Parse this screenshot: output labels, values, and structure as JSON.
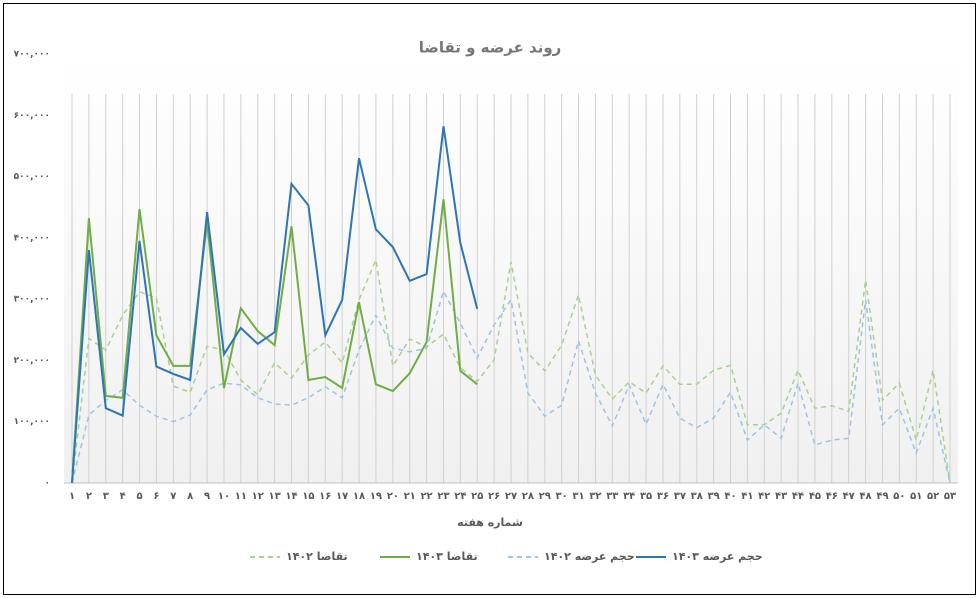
{
  "chart_data": {
    "type": "line",
    "title": "روند عرضه و تقاضا",
    "x_label": "شماره هفته",
    "categories": [
      "۱",
      "۲",
      "۳",
      "۴",
      "۵",
      "۶",
      "۷",
      "۸",
      "۹",
      "۱۰",
      "۱۱",
      "۱۲",
      "۱۳",
      "۱۴",
      "۱۵",
      "۱۶",
      "۱۷",
      "۱۸",
      "۱۹",
      "۲۰",
      "۲۱",
      "۲۲",
      "۲۳",
      "۲۴",
      "۲۵",
      "۲۶",
      "۲۷",
      "۲۸",
      "۲۹",
      "۳۰",
      "۳۱",
      "۳۲",
      "۳۳",
      "۳۴",
      "۳۵",
      "۳۶",
      "۳۷",
      "۳۸",
      "۳۹",
      "۴۰",
      "۴۱",
      "۴۲",
      "۴۳",
      "۴۴",
      "۴۵",
      "۴۶",
      "۴۷",
      "۴۸",
      "۴۹",
      "۵۰",
      "۵۱",
      "۵۲",
      "۵۳"
    ],
    "ylim": [
      0,
      700000
    ],
    "yticks": [
      {
        "value": 0,
        "label": "۰"
      },
      {
        "value": 100000,
        "label": "۱۰۰,۰۰۰"
      },
      {
        "value": 200000,
        "label": "۲۰۰,۰۰۰"
      },
      {
        "value": 300000,
        "label": "۳۰۰,۰۰۰"
      },
      {
        "value": 400000,
        "label": "۴۰۰,۰۰۰"
      },
      {
        "value": 500000,
        "label": "۵۰۰,۰۰۰"
      },
      {
        "value": 600000,
        "label": "۶۰۰,۰۰۰"
      },
      {
        "value": 700000,
        "label": "۷۰۰,۰۰۰"
      }
    ],
    "grid": "vertical",
    "legend": "bottom",
    "series": [
      {
        "name": "تقاضا ۱۴۰۲",
        "color": "#a9d18e",
        "style": "dashed",
        "values": [
          0,
          236000,
          217000,
          274000,
          312000,
          302000,
          158000,
          148000,
          223000,
          217000,
          168000,
          144000,
          196000,
          171000,
          209000,
          230000,
          196000,
          299000,
          364000,
          191000,
          235000,
          222000,
          243000,
          188000,
          166000,
          201000,
          361000,
          212000,
          183000,
          225000,
          307000,
          176000,
          137000,
          165000,
          147000,
          191000,
          161000,
          161000,
          184000,
          192000,
          95000,
          95000,
          114000,
          184000,
          122000,
          126000,
          117000,
          331000,
          135000,
          163000,
          70000,
          184000,
          0
        ]
      },
      {
        "name": "تقاضا ۱۴۰۳",
        "color": "#70ad47",
        "style": "solid",
        "values": [
          0,
          432000,
          142000,
          139000,
          447000,
          241000,
          191000,
          191000,
          426000,
          155000,
          285000,
          248000,
          225000,
          419000,
          168000,
          173000,
          155000,
          295000,
          161000,
          150000,
          179000,
          230000,
          463000,
          183000,
          161000,
          null,
          null,
          null,
          null,
          null,
          null,
          null,
          null,
          null,
          null,
          null,
          null,
          null,
          null,
          null,
          null,
          null,
          null,
          null,
          null,
          null,
          null,
          null,
          null,
          null,
          null,
          null,
          null
        ]
      },
      {
        "name": "حجم عرضه ۱۴۰۲",
        "color": "#9dc3e6",
        "style": "dashed",
        "values": [
          0,
          111000,
          135000,
          152000,
          127000,
          109000,
          100000,
          111000,
          152000,
          163000,
          160000,
          139000,
          129000,
          127000,
          139000,
          157000,
          139000,
          217000,
          274000,
          220000,
          214000,
          220000,
          313000,
          261000,
          204000,
          258000,
          299000,
          147000,
          109000,
          127000,
          232000,
          147000,
          93000,
          160000,
          96000,
          161000,
          106000,
          90000,
          106000,
          148000,
          70000,
          95000,
          73000,
          163000,
          62000,
          70000,
          73000,
          299000,
          95000,
          122000,
          49000,
          122000,
          0
        ]
      },
      {
        "name": "حجم عرضه ۱۴۰۳",
        "color": "#2e75b6",
        "style": "solid",
        "values": [
          0,
          380000,
          122000,
          110000,
          395000,
          190000,
          178000,
          168000,
          442000,
          210000,
          253000,
          227000,
          246000,
          488000,
          453000,
          241000,
          299000,
          530000,
          414000,
          385000,
          330000,
          341000,
          582000,
          392000,
          284000,
          null,
          null,
          null,
          null,
          null,
          null,
          null,
          null,
          null,
          null,
          null,
          null,
          null,
          null,
          null,
          null,
          null,
          null,
          null,
          null,
          null,
          null,
          null,
          null,
          null,
          null,
          null,
          null
        ]
      }
    ]
  }
}
